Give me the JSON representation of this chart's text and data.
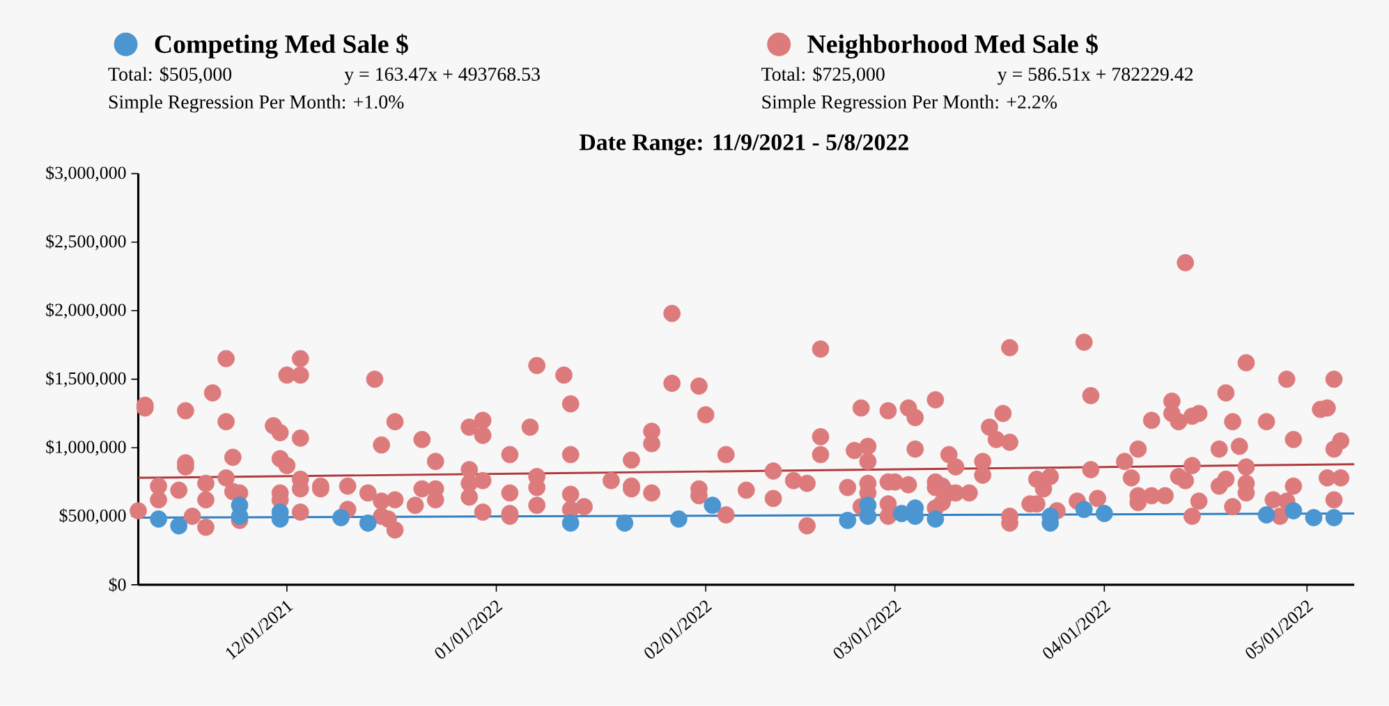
{
  "chart_data": {
    "type": "scatter",
    "title": "Date Range: 11/9/2021 - 5/8/2022",
    "legend": "top",
    "marker": "circle",
    "annotations": [
      "Total: $505,000",
      "y = 163.47x + 493768.53",
      "Simple Regression Per Month: +1.0%",
      "Total: $725,000",
      "y = 586.51x + 782229.42",
      "Simple Regression Per Month: +2.2%"
    ],
    "xlim": [
      "2021-11-09",
      "2022-05-08"
    ],
    "xticks": [
      {
        "value": "2021-12-01",
        "label": "12/01/2021"
      },
      {
        "value": "2022-01-01",
        "label": "01/01/2022"
      },
      {
        "value": "2022-02-01",
        "label": "02/01/2022"
      },
      {
        "value": "2022-03-01",
        "label": "03/01/2022"
      },
      {
        "value": "2022-04-01",
        "label": "04/01/2022"
      },
      {
        "value": "2022-05-01",
        "label": "05/01/2022"
      }
    ],
    "ylim": [
      0,
      3000000
    ],
    "yticks": [
      {
        "value": 0,
        "label": "$0"
      },
      {
        "value": 500000,
        "label": "$500,000"
      },
      {
        "value": 1000000,
        "label": "$1,000,000"
      },
      {
        "value": 1500000,
        "label": "$1,500,000"
      },
      {
        "value": 2000000,
        "label": "$2,000,000"
      },
      {
        "value": 2500000,
        "label": "$2,500,000"
      },
      {
        "value": 3000000,
        "label": "$3,000,000"
      }
    ],
    "series": [
      {
        "name": "Competing Med Sale $",
        "color": "#4b95d0",
        "x": [
          "2021-11-12",
          "2021-11-15",
          "2021-11-24",
          "2021-11-24",
          "2021-11-30",
          "2021-11-30",
          "2021-12-09",
          "2021-12-13",
          "2022-01-12",
          "2022-01-20",
          "2022-01-28",
          "2022-02-02",
          "2022-02-22",
          "2022-02-25",
          "2022-02-25",
          "2022-03-02",
          "2022-03-04",
          "2022-03-04",
          "2022-03-07",
          "2022-03-24",
          "2022-03-24",
          "2022-03-29",
          "2022-04-01",
          "2022-04-25",
          "2022-04-29",
          "2022-05-02",
          "2022-05-05"
        ],
        "values": [
          480000,
          430000,
          580000,
          500000,
          530000,
          480000,
          490000,
          450000,
          450000,
          450000,
          480000,
          580000,
          470000,
          580000,
          500000,
          520000,
          560000,
          500000,
          480000,
          500000,
          450000,
          550000,
          520000,
          510000,
          540000,
          490000,
          490000
        ]
      },
      {
        "name": "Neighborhood Med Sale $",
        "color": "#dd7a7c",
        "x": [
          "2021-11-09",
          "2021-11-10",
          "2021-11-10",
          "2021-11-12",
          "2021-11-12",
          "2021-11-15",
          "2021-11-16",
          "2021-11-16",
          "2021-11-16",
          "2021-11-17",
          "2021-11-19",
          "2021-11-19",
          "2021-11-19",
          "2021-11-20",
          "2021-11-22",
          "2021-11-22",
          "2021-11-22",
          "2021-11-23",
          "2021-11-23",
          "2021-11-24",
          "2021-11-24",
          "2021-11-29",
          "2021-11-30",
          "2021-11-30",
          "2021-11-30",
          "2021-11-30",
          "2021-12-01",
          "2021-12-01",
          "2021-12-03",
          "2021-12-03",
          "2021-12-03",
          "2021-12-03",
          "2021-12-03",
          "2021-12-03",
          "2021-12-06",
          "2021-12-06",
          "2021-12-10",
          "2021-12-10",
          "2021-12-13",
          "2021-12-14",
          "2021-12-15",
          "2021-12-15",
          "2021-12-15",
          "2021-12-16",
          "2021-12-17",
          "2021-12-17",
          "2021-12-17",
          "2021-12-20",
          "2021-12-21",
          "2021-12-21",
          "2021-12-23",
          "2021-12-23",
          "2021-12-23",
          "2021-12-28",
          "2021-12-28",
          "2021-12-28",
          "2021-12-28",
          "2021-12-30",
          "2021-12-30",
          "2021-12-30",
          "2021-12-30",
          "2022-01-03",
          "2022-01-03",
          "2022-01-03",
          "2022-01-03",
          "2022-01-06",
          "2022-01-07",
          "2022-01-07",
          "2022-01-07",
          "2022-01-07",
          "2022-01-11",
          "2022-01-12",
          "2022-01-12",
          "2022-01-12",
          "2022-01-12",
          "2022-01-14",
          "2022-01-18",
          "2022-01-21",
          "2022-01-21",
          "2022-01-21",
          "2022-01-24",
          "2022-01-24",
          "2022-01-24",
          "2022-01-27",
          "2022-01-27",
          "2022-01-31",
          "2022-01-31",
          "2022-01-31",
          "2022-02-01",
          "2022-02-04",
          "2022-02-04",
          "2022-02-07",
          "2022-02-11",
          "2022-02-11",
          "2022-02-14",
          "2022-02-16",
          "2022-02-16",
          "2022-02-18",
          "2022-02-18",
          "2022-02-18",
          "2022-02-22",
          "2022-02-23",
          "2022-02-24",
          "2022-02-24",
          "2022-02-25",
          "2022-02-25",
          "2022-02-25",
          "2022-02-25",
          "2022-02-28",
          "2022-02-28",
          "2022-02-28",
          "2022-02-28",
          "2022-03-01",
          "2022-03-03",
          "2022-03-03",
          "2022-03-04",
          "2022-03-04",
          "2022-03-07",
          "2022-03-07",
          "2022-03-07",
          "2022-03-07",
          "2022-03-08",
          "2022-03-08",
          "2022-03-09",
          "2022-03-09",
          "2022-03-10",
          "2022-03-10",
          "2022-03-12",
          "2022-03-14",
          "2022-03-14",
          "2022-03-15",
          "2022-03-16",
          "2022-03-17",
          "2022-03-18",
          "2022-03-18",
          "2022-03-18",
          "2022-03-18",
          "2022-03-21",
          "2022-03-22",
          "2022-03-22",
          "2022-03-23",
          "2022-03-24",
          "2022-03-25",
          "2022-03-28",
          "2022-03-29",
          "2022-03-30",
          "2022-03-30",
          "2022-03-31",
          "2022-04-04",
          "2022-04-05",
          "2022-04-06",
          "2022-04-06",
          "2022-04-06",
          "2022-04-08",
          "2022-04-08",
          "2022-04-10",
          "2022-04-11",
          "2022-04-11",
          "2022-04-12",
          "2022-04-12",
          "2022-04-13",
          "2022-04-13",
          "2022-04-14",
          "2022-04-14",
          "2022-04-14",
          "2022-04-15",
          "2022-04-15",
          "2022-04-18",
          "2022-04-18",
          "2022-04-19",
          "2022-04-19",
          "2022-04-20",
          "2022-04-20",
          "2022-04-21",
          "2022-04-22",
          "2022-04-22",
          "2022-04-22",
          "2022-04-22",
          "2022-04-25",
          "2022-04-26",
          "2022-04-27",
          "2022-04-28",
          "2022-04-28",
          "2022-04-29",
          "2022-04-29",
          "2022-05-03",
          "2022-05-04",
          "2022-05-04",
          "2022-05-05",
          "2022-05-05",
          "2022-05-05",
          "2022-05-06",
          "2022-05-06"
        ],
        "values": [
          540000,
          1310000,
          1290000,
          720000,
          620000,
          690000,
          1270000,
          890000,
          860000,
          500000,
          740000,
          620000,
          420000,
          1400000,
          1650000,
          1190000,
          780000,
          930000,
          680000,
          670000,
          470000,
          1160000,
          1110000,
          920000,
          670000,
          620000,
          870000,
          1530000,
          1650000,
          1530000,
          1070000,
          770000,
          700000,
          530000,
          720000,
          700000,
          720000,
          550000,
          670000,
          1500000,
          1020000,
          610000,
          500000,
          480000,
          400000,
          620000,
          1190000,
          580000,
          1060000,
          700000,
          700000,
          620000,
          900000,
          1150000,
          840000,
          740000,
          640000,
          1200000,
          1090000,
          760000,
          530000,
          950000,
          670000,
          520000,
          500000,
          1150000,
          1600000,
          790000,
          710000,
          580000,
          1530000,
          1320000,
          950000,
          660000,
          550000,
          570000,
          760000,
          910000,
          720000,
          700000,
          1120000,
          1030000,
          670000,
          1980000,
          1470000,
          1450000,
          700000,
          650000,
          1240000,
          950000,
          510000,
          690000,
          830000,
          630000,
          760000,
          740000,
          430000,
          1720000,
          1080000,
          950000,
          710000,
          980000,
          1290000,
          570000,
          1010000,
          900000,
          740000,
          670000,
          1270000,
          750000,
          590000,
          500000,
          750000,
          1290000,
          730000,
          1220000,
          990000,
          1350000,
          750000,
          710000,
          560000,
          720000,
          600000,
          950000,
          670000,
          860000,
          670000,
          670000,
          900000,
          800000,
          1150000,
          1060000,
          1250000,
          1730000,
          1040000,
          500000,
          450000,
          590000,
          770000,
          590000,
          700000,
          790000,
          540000,
          610000,
          1770000,
          1380000,
          840000,
          630000,
          900000,
          780000,
          990000,
          650000,
          600000,
          1200000,
          650000,
          650000,
          1340000,
          1250000,
          1190000,
          790000,
          2350000,
          760000,
          1230000,
          870000,
          500000,
          1250000,
          610000,
          720000,
          990000,
          1400000,
          770000,
          1190000,
          570000,
          1010000,
          1620000,
          860000,
          740000,
          670000,
          1190000,
          620000,
          500000,
          1500000,
          610000,
          1060000,
          720000,
          1280000,
          1290000,
          780000,
          1500000,
          990000,
          620000,
          1050000,
          780000
        ]
      },
      {
        "type": "line",
        "marker": "none",
        "color": "#2f7fc1",
        "x": [
          "2021-11-09",
          "2022-05-08"
        ],
        "values": [
          490000,
          520000
        ]
      },
      {
        "type": "line",
        "marker": "none",
        "color": "#b03a3e",
        "x": [
          "2021-11-09",
          "2022-05-08"
        ],
        "values": [
          780000,
          880000
        ]
      }
    ]
  }
}
